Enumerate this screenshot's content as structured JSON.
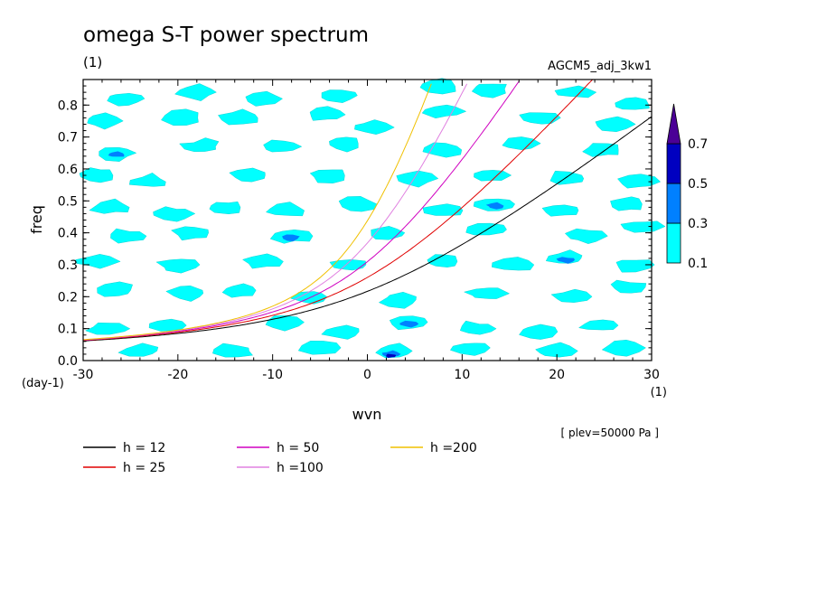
{
  "chart_data": {
    "type": "heatmap",
    "title": "omega S-T power spectrum",
    "units_label": "(1)",
    "run_label": "AGCM5_adj_3kw1",
    "xlabel": "wvn",
    "ylabel": "freq",
    "x_unit_label": "(1)",
    "y_unit_label": "(day-1)",
    "level_label": "[ plev=50000 Pa ]",
    "xlim": [
      -30,
      30
    ],
    "ylim": [
      0,
      0.88
    ],
    "x_ticks": [
      -30,
      -20,
      -10,
      0,
      10,
      20,
      30
    ],
    "x_tick_labels": [
      "-30",
      "-20",
      "-10",
      "0",
      "10",
      "20",
      "30"
    ],
    "y_ticks": [
      0.0,
      0.1,
      0.2,
      0.3,
      0.4,
      0.5,
      0.6,
      0.7,
      0.8
    ],
    "y_tick_labels": [
      "0.0",
      "0.1",
      "0.2",
      "0.3",
      "0.4",
      "0.5",
      "0.6",
      "0.7",
      "0.8"
    ],
    "colorbar": {
      "levels": [
        0.1,
        0.3,
        0.5,
        0.7
      ],
      "level_labels": [
        "0.1",
        "0.3",
        "0.5",
        "0.7"
      ],
      "colors": [
        "#00ffff",
        "#0080ff",
        "#0000c0",
        "#4b0096"
      ],
      "extend": "max"
    },
    "patches": [
      {
        "x": -25.5,
        "y": 0.82,
        "level": 1
      },
      {
        "x": -18,
        "y": 0.84,
        "level": 1
      },
      {
        "x": -11,
        "y": 0.82,
        "level": 1
      },
      {
        "x": -3,
        "y": 0.83,
        "level": 1
      },
      {
        "x": 7.5,
        "y": 0.86,
        "level": 1
      },
      {
        "x": 13,
        "y": 0.85,
        "level": 1
      },
      {
        "x": 22,
        "y": 0.84,
        "level": 1
      },
      {
        "x": 28,
        "y": 0.8,
        "level": 1
      },
      {
        "x": -28,
        "y": 0.75,
        "level": 1
      },
      {
        "x": -19.5,
        "y": 0.76,
        "level": 1
      },
      {
        "x": -13.5,
        "y": 0.76,
        "level": 1
      },
      {
        "x": -4.5,
        "y": 0.77,
        "level": 1
      },
      {
        "x": 0.5,
        "y": 0.73,
        "level": 1
      },
      {
        "x": 8,
        "y": 0.78,
        "level": 1
      },
      {
        "x": 18,
        "y": 0.76,
        "level": 1
      },
      {
        "x": 26,
        "y": 0.74,
        "level": 1
      },
      {
        "x": -26.5,
        "y": 0.65,
        "level": 1
      },
      {
        "x": -26.5,
        "y": 0.645,
        "level": 2
      },
      {
        "x": -17.5,
        "y": 0.67,
        "level": 1
      },
      {
        "x": -9,
        "y": 0.67,
        "level": 1
      },
      {
        "x": -2.5,
        "y": 0.68,
        "level": 1
      },
      {
        "x": 8,
        "y": 0.66,
        "level": 1
      },
      {
        "x": 16,
        "y": 0.68,
        "level": 1
      },
      {
        "x": 25,
        "y": 0.66,
        "level": 1
      },
      {
        "x": -28.5,
        "y": 0.58,
        "level": 1
      },
      {
        "x": -23,
        "y": 0.56,
        "level": 1
      },
      {
        "x": -12.5,
        "y": 0.58,
        "level": 1
      },
      {
        "x": -4,
        "y": 0.58,
        "level": 1
      },
      {
        "x": 5,
        "y": 0.57,
        "level": 1
      },
      {
        "x": 13,
        "y": 0.58,
        "level": 1
      },
      {
        "x": 21,
        "y": 0.57,
        "level": 1
      },
      {
        "x": 28.5,
        "y": 0.56,
        "level": 1
      },
      {
        "x": -27,
        "y": 0.48,
        "level": 1
      },
      {
        "x": -20.5,
        "y": 0.46,
        "level": 1
      },
      {
        "x": -15,
        "y": 0.48,
        "level": 1
      },
      {
        "x": -8.5,
        "y": 0.47,
        "level": 1
      },
      {
        "x": -1,
        "y": 0.49,
        "level": 1
      },
      {
        "x": 8,
        "y": 0.47,
        "level": 1
      },
      {
        "x": 13.5,
        "y": 0.49,
        "level": 1
      },
      {
        "x": 13.5,
        "y": 0.485,
        "level": 2
      },
      {
        "x": 20.5,
        "y": 0.47,
        "level": 1
      },
      {
        "x": 27.5,
        "y": 0.49,
        "level": 1
      },
      {
        "x": -25.5,
        "y": 0.39,
        "level": 1
      },
      {
        "x": -18.5,
        "y": 0.4,
        "level": 1
      },
      {
        "x": -8,
        "y": 0.39,
        "level": 1
      },
      {
        "x": -8,
        "y": 0.385,
        "level": 2
      },
      {
        "x": 2,
        "y": 0.4,
        "level": 1
      },
      {
        "x": 12.5,
        "y": 0.41,
        "level": 1
      },
      {
        "x": 23,
        "y": 0.39,
        "level": 1
      },
      {
        "x": 29,
        "y": 0.42,
        "level": 1
      },
      {
        "x": -28.5,
        "y": 0.31,
        "level": 1
      },
      {
        "x": -20,
        "y": 0.3,
        "level": 1
      },
      {
        "x": -11,
        "y": 0.31,
        "level": 1
      },
      {
        "x": -2,
        "y": 0.3,
        "level": 1
      },
      {
        "x": 8,
        "y": 0.31,
        "level": 1
      },
      {
        "x": 15.5,
        "y": 0.3,
        "level": 1
      },
      {
        "x": 21,
        "y": 0.32,
        "level": 1
      },
      {
        "x": 21,
        "y": 0.315,
        "level": 2
      },
      {
        "x": 28,
        "y": 0.3,
        "level": 1
      },
      {
        "x": -26.5,
        "y": 0.22,
        "level": 1
      },
      {
        "x": -19,
        "y": 0.21,
        "level": 1
      },
      {
        "x": -13.5,
        "y": 0.22,
        "level": 1
      },
      {
        "x": -6,
        "y": 0.2,
        "level": 1
      },
      {
        "x": 3.5,
        "y": 0.19,
        "level": 1
      },
      {
        "x": 12.5,
        "y": 0.21,
        "level": 1
      },
      {
        "x": 21.5,
        "y": 0.2,
        "level": 1
      },
      {
        "x": 27.5,
        "y": 0.23,
        "level": 1
      },
      {
        "x": -27.5,
        "y": 0.1,
        "level": 1
      },
      {
        "x": -21,
        "y": 0.11,
        "level": 1
      },
      {
        "x": -9,
        "y": 0.12,
        "level": 1
      },
      {
        "x": -2.5,
        "y": 0.09,
        "level": 1
      },
      {
        "x": 4.5,
        "y": 0.12,
        "level": 1
      },
      {
        "x": 4.5,
        "y": 0.115,
        "level": 2
      },
      {
        "x": 11.5,
        "y": 0.1,
        "level": 1
      },
      {
        "x": 18,
        "y": 0.09,
        "level": 1
      },
      {
        "x": 24.5,
        "y": 0.11,
        "level": 1
      },
      {
        "x": -24,
        "y": 0.03,
        "level": 1
      },
      {
        "x": -14,
        "y": 0.03,
        "level": 1
      },
      {
        "x": -5,
        "y": 0.04,
        "level": 1
      },
      {
        "x": 3,
        "y": 0.03,
        "level": 1
      },
      {
        "x": 2.5,
        "y": 0.02,
        "level": 2
      },
      {
        "x": 2.5,
        "y": 0.015,
        "level": 3
      },
      {
        "x": 11,
        "y": 0.04,
        "level": 1
      },
      {
        "x": 20,
        "y": 0.03,
        "level": 1
      },
      {
        "x": 27,
        "y": 0.04,
        "level": 1
      }
    ],
    "series": [
      {
        "name": "h = 12",
        "color": "#000000",
        "h": 12
      },
      {
        "name": "h = 25",
        "color": "#e00000",
        "h": 25
      },
      {
        "name": "h = 50",
        "color": "#d000c0",
        "h": 50
      },
      {
        "name": "h =100",
        "color": "#e080e0",
        "h": 100
      },
      {
        "name": "h =200",
        "color": "#f0c000",
        "h": 200
      }
    ],
    "grid": false,
    "legend_position": "bottom-left"
  }
}
